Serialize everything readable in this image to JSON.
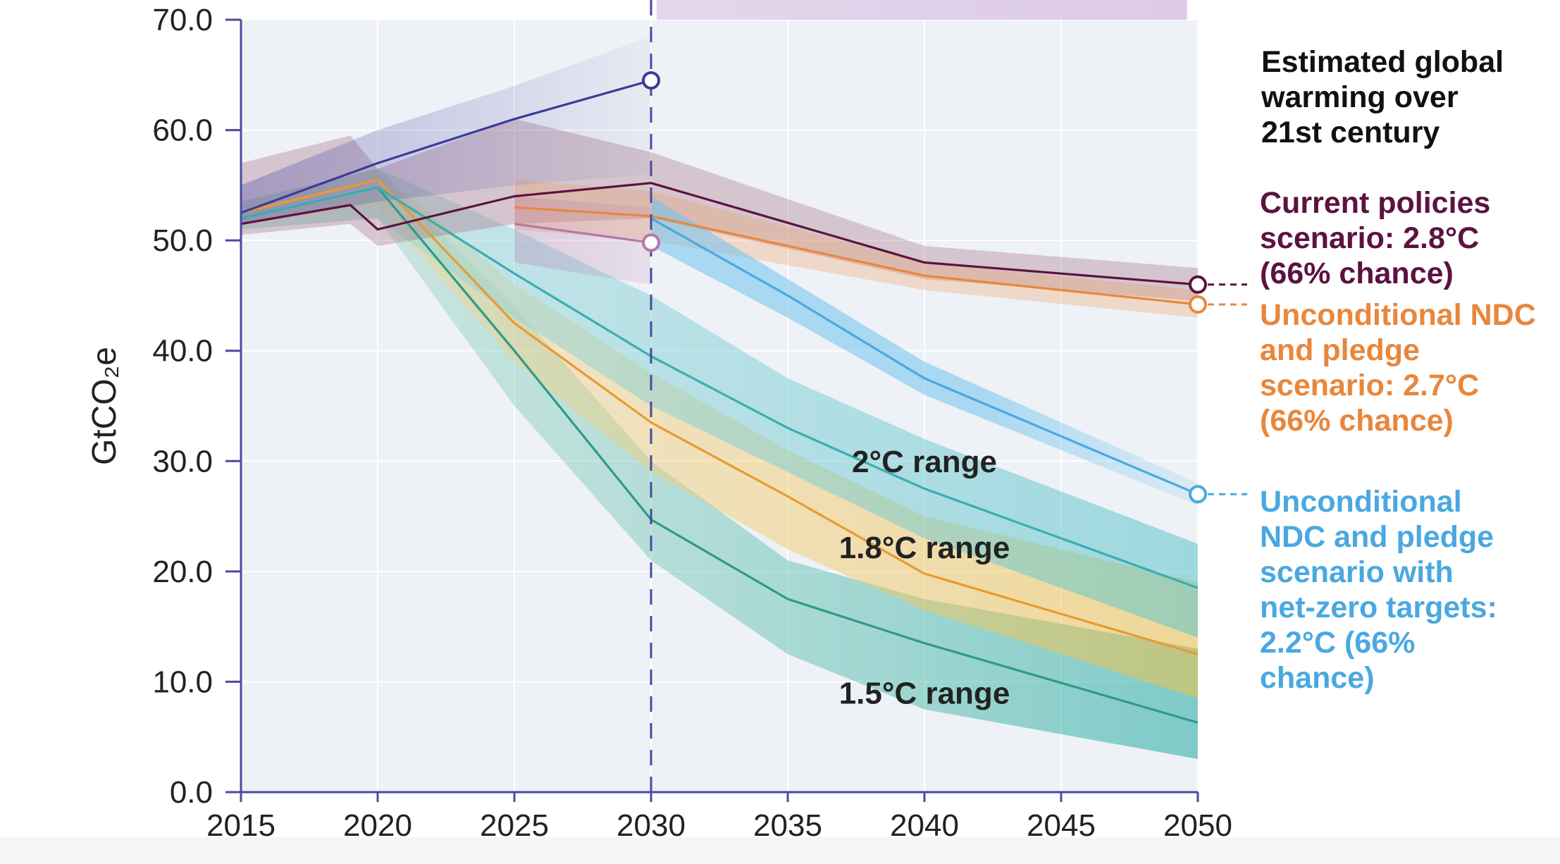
{
  "chart_data": {
    "type": "line",
    "ylabel": "GtCO₂e",
    "xlim": [
      2015,
      2050
    ],
    "ylim": [
      0,
      70
    ],
    "x_ticks": [
      "2015",
      "2020",
      "2025",
      "2030",
      "2035",
      "2040",
      "2045",
      "2050"
    ],
    "y_ticks": [
      "0.0",
      "10.0",
      "20.0",
      "30.0",
      "40.0",
      "50.0",
      "60.0",
      "70.0"
    ],
    "grid": true,
    "reference_line": {
      "x": 2030,
      "style": "dashed"
    },
    "legend_title": "Estimated global warming over 21st century",
    "series": [
      {
        "key": "current",
        "name": "Current policies scenario: 2.8°C (66% chance)",
        "x": [
          2015,
          2019,
          2020,
          2025,
          2030,
          2040,
          2050
        ],
        "y": [
          51.5,
          53.2,
          51.0,
          54.0,
          55.2,
          48.0,
          46.0
        ],
        "lower": [
          50.5,
          51.5,
          49.5,
          51.5,
          52.0,
          46.5,
          44.5
        ],
        "upper": [
          57.0,
          59.5,
          56.5,
          61.0,
          58.0,
          49.5,
          47.5
        ]
      },
      {
        "key": "uncond",
        "name": "Unconditional NDC and pledge scenario: 2.7°C (66% chance)",
        "x": [
          2025,
          2030,
          2040,
          2050
        ],
        "y": [
          53.0,
          52.2,
          46.8,
          44.2
        ],
        "lower": [
          51.0,
          50.0,
          45.5,
          43.0
        ],
        "upper": [
          55.5,
          54.5,
          48.0,
          45.5
        ]
      },
      {
        "key": "netzero",
        "name": "Unconditional NDC and pledge scenario with net-zero targets: 2.2°C (66% chance)",
        "x": [
          2030,
          2035,
          2040,
          2050
        ],
        "y": [
          52.0,
          45.0,
          37.5,
          27.0
        ],
        "lower": [
          49.5,
          43.0,
          36.0,
          26.0
        ],
        "upper": [
          54.0,
          46.5,
          39.0,
          28.0
        ]
      },
      {
        "key": "hist_blue",
        "name": "",
        "x": [
          2015,
          2020,
          2025,
          2030
        ],
        "y": [
          52.5,
          57.0,
          61.0,
          64.5
        ],
        "lower": [
          51.5,
          53.5,
          55.0,
          56.0
        ],
        "upper": [
          55.0,
          60.0,
          64.0,
          68.5
        ]
      },
      {
        "key": "pink",
        "name": "",
        "x": [
          2025,
          2030
        ],
        "y": [
          51.5,
          49.8
        ],
        "lower": [
          48.0,
          46.0
        ],
        "upper": [
          54.0,
          53.0
        ]
      },
      {
        "key": "two",
        "name": "2°C range",
        "x": [
          2015,
          2020,
          2025,
          2030,
          2035,
          2040,
          2050
        ],
        "y": [
          52.0,
          54.8,
          47.0,
          39.5,
          33.0,
          27.5,
          18.5
        ],
        "lower": [
          51.0,
          52.0,
          43.0,
          35.0,
          29.0,
          23.0,
          14.0
        ],
        "upper": [
          53.5,
          56.5,
          51.0,
          45.0,
          37.5,
          32.0,
          22.5
        ]
      },
      {
        "key": "one8",
        "name": "1.8°C range",
        "x": [
          2015,
          2020,
          2025,
          2030,
          2035,
          2040,
          2050
        ],
        "y": [
          52.5,
          55.5,
          42.5,
          33.5,
          26.8,
          19.8,
          12.5
        ],
        "lower": [
          51.5,
          53.0,
          39.0,
          29.0,
          22.0,
          16.5,
          8.5
        ],
        "upper": [
          53.5,
          56.5,
          46.0,
          38.0,
          31.0,
          25.0,
          19.0
        ]
      },
      {
        "key": "one5",
        "name": "1.5°C range",
        "x": [
          2015,
          2020,
          2025,
          2030,
          2035,
          2040,
          2050
        ],
        "y": [
          52.0,
          54.8,
          40.0,
          24.7,
          17.5,
          13.5,
          6.3
        ],
        "lower": [
          51.0,
          52.0,
          35.0,
          21.0,
          12.5,
          7.5,
          3.0
        ],
        "upper": [
          53.5,
          56.5,
          44.0,
          30.0,
          21.0,
          17.5,
          13.0
        ]
      }
    ],
    "end_markers": [
      {
        "series": "current",
        "x": 2050,
        "y": 46.0
      },
      {
        "series": "uncond",
        "x": 2050,
        "y": 44.2
      },
      {
        "series": "netzero",
        "x": 2050,
        "y": 27.0
      },
      {
        "series": "hist_blue",
        "x": 2030,
        "y": 64.5
      },
      {
        "series": "pink",
        "x": 2030,
        "y": 49.8
      }
    ],
    "colors": {
      "current": "#5c1240",
      "uncond": "#e8873c",
      "netzero": "#4aa8e0",
      "hist_blue": "#3b3b96",
      "pink": "#b677a6",
      "two": "#3aaeb0",
      "one8": "#e89a30",
      "one5": "#2f9a86",
      "axis": "#4a4aa0",
      "plot_bg": "#eef1f6"
    },
    "range_labels": {
      "two": "2°C range",
      "one8": "1.8°C range",
      "one5": "1.5°C range"
    },
    "side_labels": {
      "title_lines": [
        "Estimated global",
        "warming over",
        "21st century"
      ],
      "current_lines": [
        "Current policies",
        "scenario: 2.8°C",
        "(66% chance)"
      ],
      "uncond_lines": [
        "Unconditional NDC",
        "and pledge",
        "scenario: 2.7°C",
        "(66% chance)"
      ],
      "netzero_lines": [
        "Unconditional",
        "NDC and pledge",
        "scenario with",
        "net-zero targets:",
        "2.2°C (66%",
        "chance)"
      ]
    }
  }
}
